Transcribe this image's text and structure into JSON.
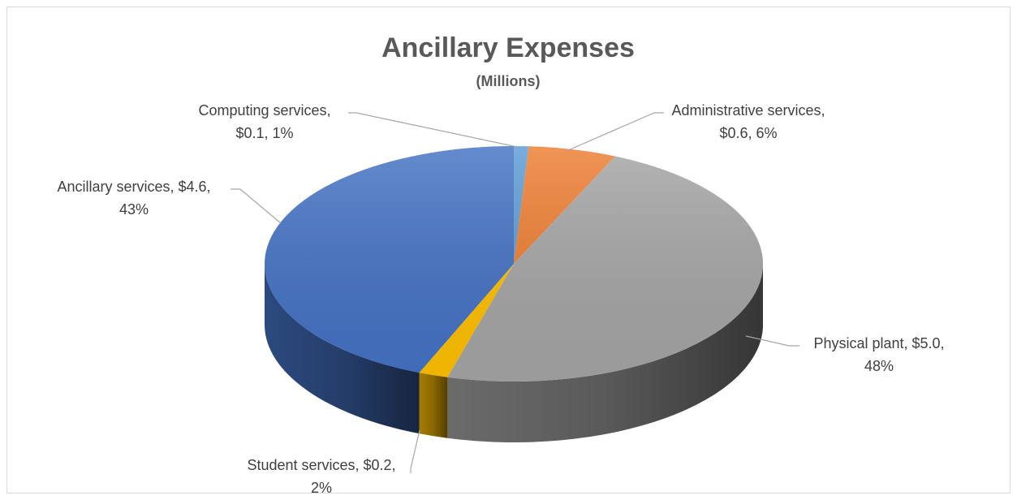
{
  "chart_data": {
    "type": "pie",
    "style": "3d",
    "title": "Ancillary Expenses",
    "subtitle": "(Millions)",
    "categories": [
      "Computing services",
      "Administrative services",
      "Physical plant",
      "Student services",
      "Ancillary services"
    ],
    "values": [
      0.1,
      0.6,
      5.0,
      0.2,
      4.6
    ],
    "percents": [
      1,
      6,
      48,
      2,
      43
    ],
    "colors": [
      "#5b9bd5",
      "#ed7d31",
      "#a5a5a5",
      "#ffc000",
      "#4472c4"
    ],
    "labels": [
      {
        "line1": "Computing services,",
        "line2": "$0.1, 1%"
      },
      {
        "line1": "Administrative services,",
        "line2": "$0.6, 6%"
      },
      {
        "line1": "Physical plant, $5.0,",
        "line2": "48%"
      },
      {
        "line1": "Student services, $0.2,",
        "line2": "2%"
      },
      {
        "line1": "Ancillary services, $4.6,",
        "line2": "43%"
      }
    ]
  }
}
